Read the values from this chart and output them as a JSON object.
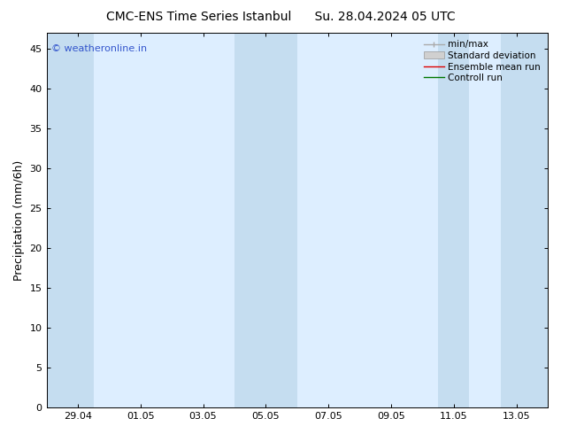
{
  "title_left": "CMC-ENS Time Series Istanbul",
  "title_right": "Su. 28.04.2024 05 UTC",
  "ylabel": "Precipitation (mm/6h)",
  "ylim": [
    0,
    47
  ],
  "yticks": [
    0,
    5,
    10,
    15,
    20,
    25,
    30,
    35,
    40,
    45
  ],
  "xtick_labels": [
    "29.04",
    "01.05",
    "03.05",
    "05.05",
    "07.05",
    "09.05",
    "11.05",
    "13.05"
  ],
  "xtick_positions": [
    1,
    3,
    5,
    7,
    9,
    11,
    13,
    15
  ],
  "xlim": [
    0,
    16
  ],
  "blue_bands": [
    [
      0,
      1.5
    ],
    [
      6.0,
      8.0
    ],
    [
      12.5,
      13.5
    ],
    [
      14.5,
      16.0
    ]
  ],
  "plot_bg_color": "#ddeeff",
  "band_color": "#c5ddf0",
  "background_color": "#ffffff",
  "watermark": "© weatheronline.in",
  "watermark_color": "#3355cc",
  "title_fontsize": 10,
  "axis_label_fontsize": 9,
  "tick_fontsize": 8,
  "legend_fontsize": 7.5
}
